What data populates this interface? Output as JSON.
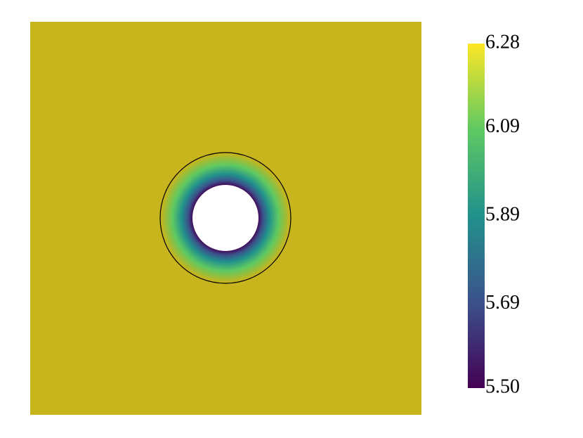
{
  "chart_data": {
    "type": "heatmap",
    "clim": [
      5.5,
      6.28
    ],
    "cticks": [
      6.28,
      6.09,
      5.89,
      5.69,
      {
        "value": 5.5,
        "label": "5.50"
      }
    ],
    "colormap": [
      "#440154",
      "#3b528b",
      "#21918c",
      "#5ec962",
      "#fde725"
    ]
  }
}
